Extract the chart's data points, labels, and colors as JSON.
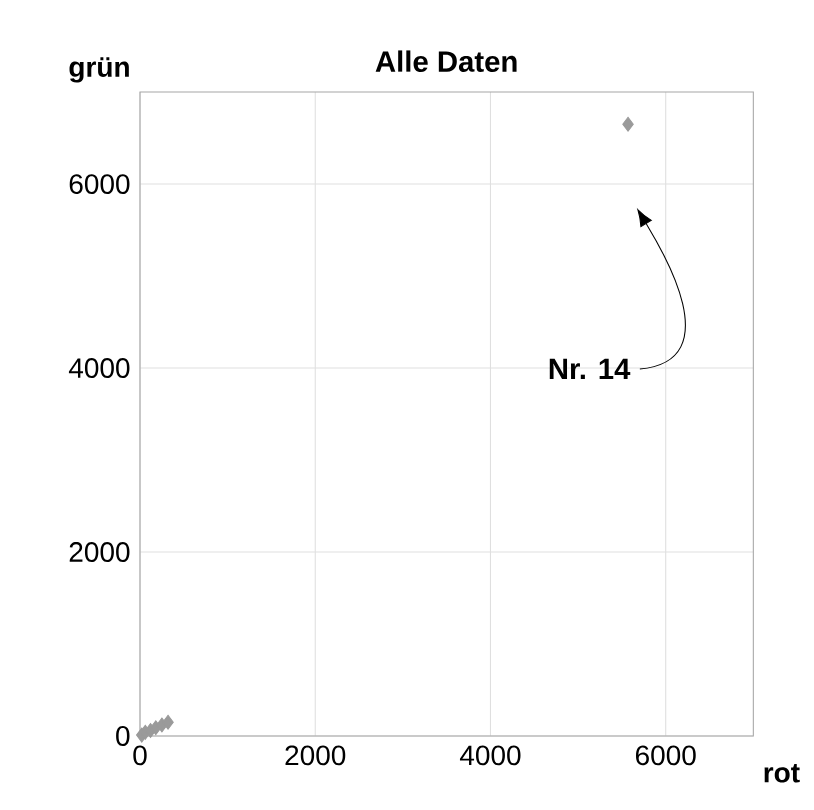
{
  "chart_data": {
    "type": "scatter",
    "title": "Alle Daten",
    "xlabel": "rot",
    "ylabel": "grün",
    "x": [
      20,
      60,
      120,
      180,
      250,
      320,
      5570
    ],
    "values": [
      10,
      40,
      60,
      90,
      120,
      150,
      6650
    ],
    "color": "#9a9a9a",
    "marker": "diamond",
    "xlim": [
      0,
      7000
    ],
    "ylim": [
      0,
      7000
    ],
    "xticks": [
      0,
      2000,
      4000,
      6000
    ],
    "yticks": [
      0,
      2000,
      4000,
      6000
    ],
    "grid": true,
    "annotations": [
      "Nr. 14"
    ]
  }
}
